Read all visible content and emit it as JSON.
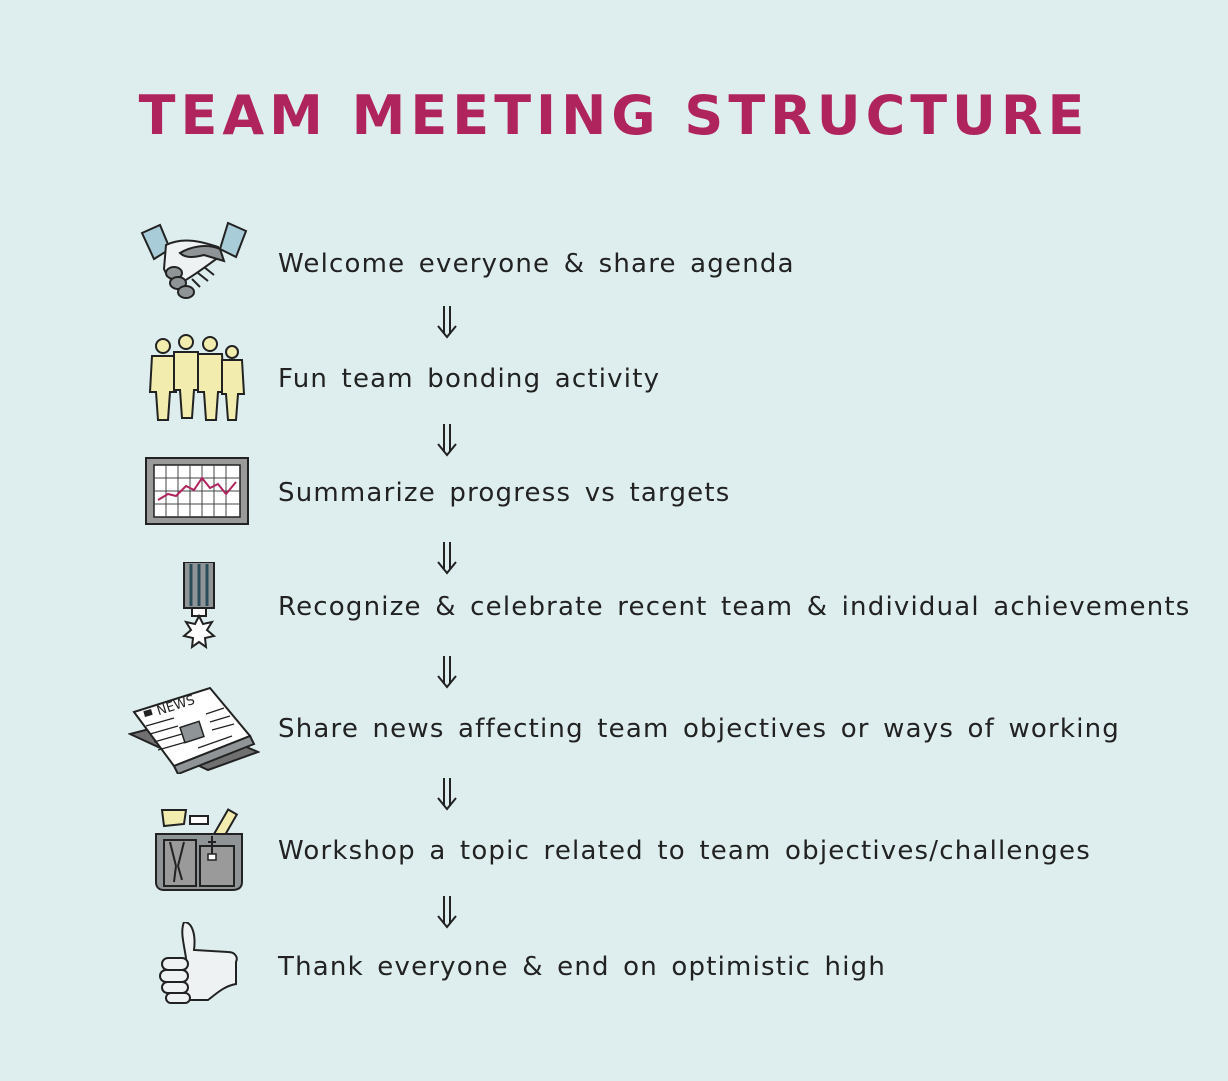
{
  "title": "TEAM MEETING STRUCTURE",
  "colors": {
    "background": "#deeeee",
    "title": "#b0245e",
    "text": "#222222"
  },
  "steps": [
    {
      "label": "Welcome everyone & share agenda",
      "icon": "handshake-icon"
    },
    {
      "label": "Fun team bonding activity",
      "icon": "team-people-icon"
    },
    {
      "label": "Summarize progress vs targets",
      "icon": "progress-chart-icon"
    },
    {
      "label": "Recognize & celebrate recent team & individual achievements",
      "icon": "medal-icon"
    },
    {
      "label": "Share news affecting team objectives or ways of working",
      "icon": "newspaper-icon"
    },
    {
      "label": "Workshop a topic related to team objectives/challenges",
      "icon": "toolbox-icon"
    },
    {
      "label": "Thank everyone & end on optimistic high",
      "icon": "thumbs-up-icon"
    }
  ]
}
